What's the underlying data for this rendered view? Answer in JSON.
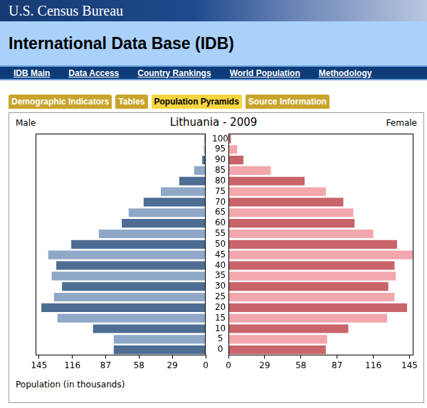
{
  "header": {
    "agency": "U.S. Census Bureau",
    "title": "International Data Base (IDB)",
    "nav": [
      "IDB Main",
      "Data Access",
      "Country Rankings",
      "World Population",
      "Methodology"
    ]
  },
  "tabs": {
    "items": [
      "Demographic Indicators",
      "Tables",
      "Population Pyramids",
      "Source Information"
    ],
    "active": "Population Pyramids"
  },
  "chart_data": {
    "type": "bar",
    "orientation": "horizontal",
    "title": "Lithuania - 2009",
    "xlabel": "Population (in thousands)",
    "categories": [
      "0",
      "5",
      "10",
      "15",
      "20",
      "25",
      "30",
      "35",
      "40",
      "45",
      "50",
      "55",
      "60",
      "65",
      "70",
      "75",
      "80",
      "85",
      "90",
      "95",
      "100"
    ],
    "series": [
      {
        "name": "Male",
        "values": [
          80,
          80,
          98,
          129,
          143,
          132,
          125,
          134,
          130,
          137,
          117,
          93,
          73,
          67,
          54,
          39,
          23,
          10,
          3,
          1.5,
          1
        ],
        "colors": [
          "#4d6d93",
          "#8fa8c8",
          "#4d6d93",
          "#8fa8c8",
          "#4d6d93",
          "#8fa8c8",
          "#4d6d93",
          "#8fa8c8",
          "#4d6d93",
          "#8fa8c8",
          "#4d6d93",
          "#8fa8c8",
          "#4d6d93",
          "#8fa8c8",
          "#4d6d93",
          "#8fa8c8",
          "#4d6d93",
          "#8fa8c8",
          "#4d6d93",
          "#8fa8c8",
          "#4d6d93"
        ]
      },
      {
        "name": "Female",
        "values": [
          78,
          79,
          96,
          127,
          143,
          133,
          128,
          134,
          133,
          148,
          135,
          116,
          101,
          100,
          92,
          78,
          61,
          34,
          12,
          7,
          2
        ],
        "colors": [
          "#c8646a",
          "#f2a7ad",
          "#c8646a",
          "#f2a7ad",
          "#c8646a",
          "#f2a7ad",
          "#c8646a",
          "#f2a7ad",
          "#c8646a",
          "#f2a7ad",
          "#c8646a",
          "#f2a7ad",
          "#c8646a",
          "#f2a7ad",
          "#c8646a",
          "#f2a7ad",
          "#c8646a",
          "#f2a7ad",
          "#c8646a",
          "#f2a7ad",
          "#c8646a"
        ]
      }
    ],
    "xlim": [
      0,
      148
    ],
    "xticks": [
      0,
      29,
      58,
      87,
      116,
      145
    ],
    "grid": false
  }
}
